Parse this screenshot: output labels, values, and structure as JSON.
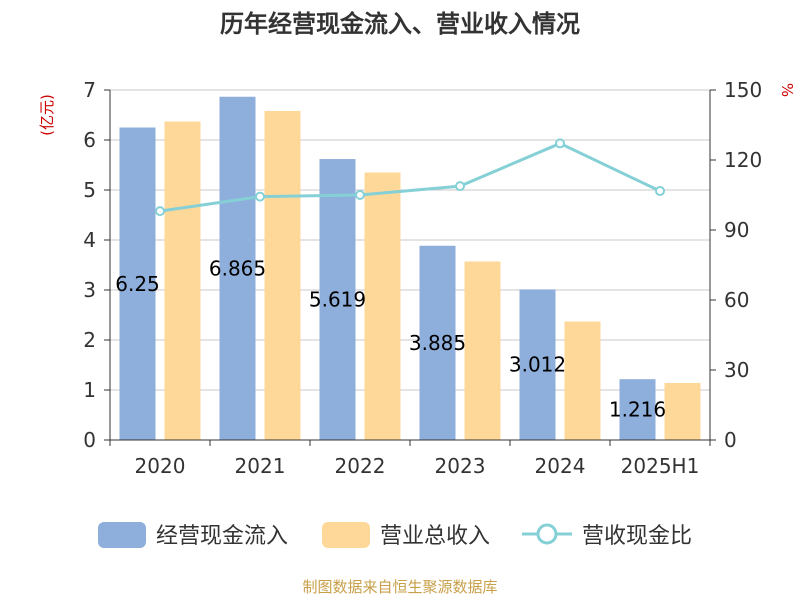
{
  "chart_data": {
    "type": "bar",
    "title": "历年经营现金流入、营业收入情况",
    "source": "制图数据来自恒生聚源数据库",
    "y_left_label": "(亿元)",
    "y_right_label": "%",
    "categories": [
      "2020",
      "2021",
      "2022",
      "2023",
      "2024",
      "2025H1"
    ],
    "y_left_range": [
      0,
      7
    ],
    "y_left_ticks": [
      "0",
      "1",
      "2",
      "3",
      "4",
      "5",
      "6",
      "7"
    ],
    "y_right_range": [
      0,
      150
    ],
    "y_right_ticks": [
      "0",
      "30",
      "60",
      "90",
      "120",
      "150"
    ],
    "grid": true,
    "legend_position": "bottom",
    "series": [
      {
        "name": "经营现金流入",
        "kind": "bar",
        "axis": "left",
        "color": "#8eaedb",
        "values": [
          6.25,
          6.865,
          5.619,
          3.885,
          3.012,
          1.216
        ],
        "labels": [
          "6.25",
          "6.865",
          "5.619",
          "3.885",
          "3.012",
          "1.216"
        ]
      },
      {
        "name": "营业总收入",
        "kind": "bar",
        "axis": "left",
        "color": "#fdd899",
        "values": [
          6.37,
          6.58,
          5.35,
          3.57,
          2.37,
          1.14
        ]
      },
      {
        "name": "营收现金比",
        "kind": "line",
        "axis": "right",
        "color": "#85d0d6",
        "values": [
          98.1,
          104.3,
          105.0,
          108.8,
          127.1,
          106.7
        ]
      }
    ]
  }
}
